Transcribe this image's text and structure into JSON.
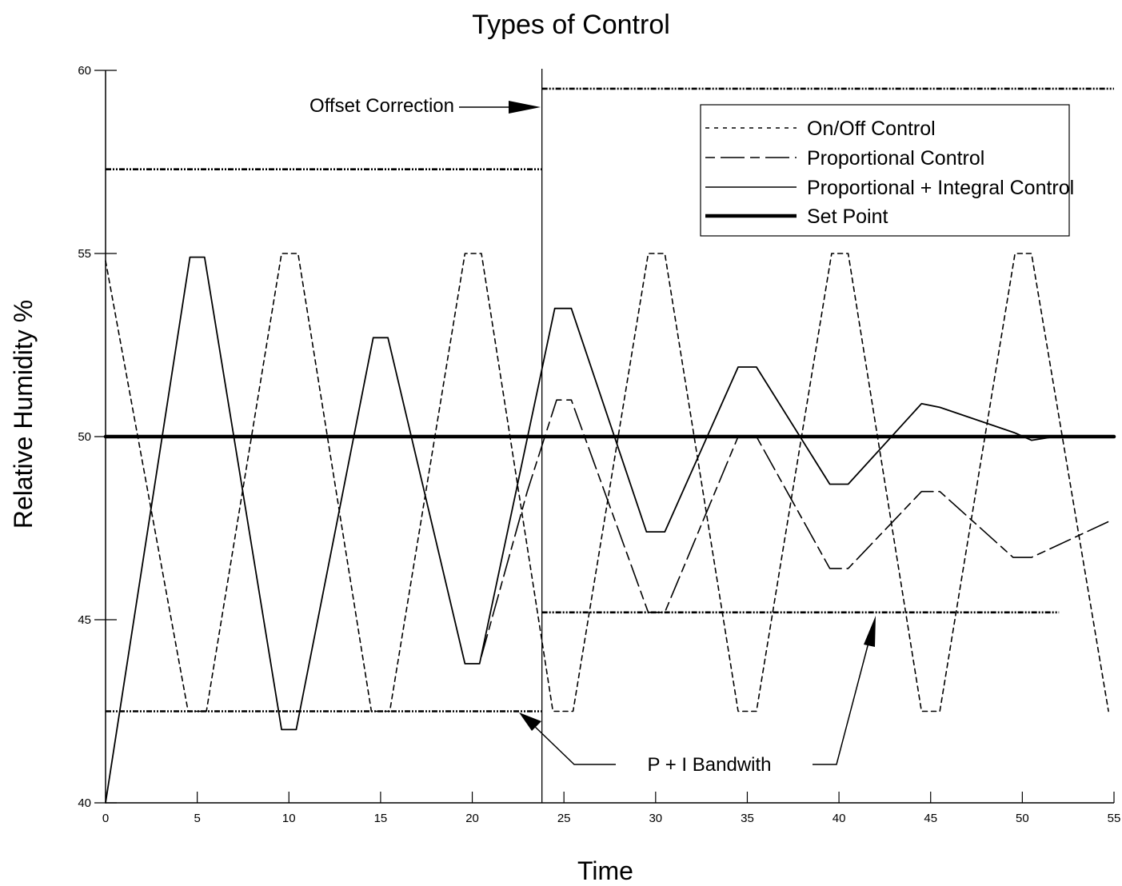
{
  "chart_data": {
    "type": "line",
    "title": "Types of Control",
    "xlabel": "Time",
    "ylabel": "Relative Humidity %",
    "xlim": [
      0,
      55
    ],
    "ylim": [
      40,
      60
    ],
    "x_ticks": [
      0,
      5,
      10,
      15,
      20,
      25,
      30,
      35,
      40,
      45,
      50,
      55
    ],
    "y_ticks": [
      40,
      45,
      50,
      55,
      60
    ],
    "grid": false,
    "legend_position": "top-right",
    "series": [
      {
        "name": "On/Off Control",
        "style": "short-dash",
        "points": [
          [
            0,
            54.8
          ],
          [
            4.5,
            42.5
          ],
          [
            5.5,
            42.5
          ],
          [
            9.6,
            55
          ],
          [
            10.5,
            55
          ],
          [
            14.5,
            42.5
          ],
          [
            15.5,
            42.5
          ],
          [
            19.6,
            55
          ],
          [
            20.5,
            55
          ],
          [
            24.4,
            42.5
          ],
          [
            25.5,
            42.5
          ],
          [
            29.6,
            55
          ],
          [
            30.5,
            55
          ],
          [
            34.5,
            42.5
          ],
          [
            35.5,
            42.5
          ],
          [
            39.6,
            55
          ],
          [
            40.5,
            55
          ],
          [
            44.5,
            42.5
          ],
          [
            45.5,
            42.5
          ],
          [
            49.6,
            55
          ],
          [
            50.5,
            55
          ],
          [
            54.7,
            42.5
          ]
        ]
      },
      {
        "name": "Proportional Control",
        "style": "long-dash",
        "points": [
          [
            20.5,
            44
          ],
          [
            23,
            48.5
          ],
          [
            24.6,
            51
          ],
          [
            25.4,
            51
          ],
          [
            29.6,
            45.2
          ],
          [
            30.5,
            45.2
          ],
          [
            34.5,
            50
          ],
          [
            35.5,
            50
          ],
          [
            39.5,
            46.4
          ],
          [
            40.5,
            46.4
          ],
          [
            44.5,
            48.5
          ],
          [
            45.5,
            48.5
          ],
          [
            49.5,
            46.7
          ],
          [
            50.5,
            46.7
          ],
          [
            54.8,
            47.7
          ]
        ]
      },
      {
        "name": "Proportional + Integral Control",
        "style": "solid",
        "points": [
          [
            0,
            40
          ],
          [
            4.6,
            54.9
          ],
          [
            5.4,
            54.9
          ],
          [
            9.6,
            42
          ],
          [
            10.4,
            42
          ],
          [
            14.6,
            52.7
          ],
          [
            15.4,
            52.7
          ],
          [
            19.6,
            43.8
          ],
          [
            20.4,
            43.8
          ],
          [
            24.5,
            53.5
          ],
          [
            25.4,
            53.5
          ],
          [
            29.5,
            47.4
          ],
          [
            30.5,
            47.4
          ],
          [
            34.5,
            51.9
          ],
          [
            35.5,
            51.9
          ],
          [
            39.5,
            48.7
          ],
          [
            40.5,
            48.7
          ],
          [
            44.5,
            50.9
          ],
          [
            45.5,
            50.8
          ],
          [
            49.6,
            50.1
          ],
          [
            50.5,
            49.9
          ],
          [
            51.8,
            50
          ]
        ]
      },
      {
        "name": "Set Point",
        "style": "thick-solid",
        "points": [
          [
            0,
            50
          ],
          [
            55,
            50
          ]
        ]
      }
    ],
    "reference_lines": [
      {
        "y": 57.3,
        "x_start": 0,
        "x_end": 23.8
      },
      {
        "y": 42.5,
        "x_start": 0,
        "x_end": 23.8
      },
      {
        "y": 59.5,
        "x_start": 23.8,
        "x_end": 55
      },
      {
        "y": 45.2,
        "x_start": 23.8,
        "x_end": 52
      }
    ],
    "vertical_line_x": 23.8,
    "annotations": {
      "offset_correction": "Offset Correction",
      "bandwidth": "P + I Bandwith"
    }
  }
}
